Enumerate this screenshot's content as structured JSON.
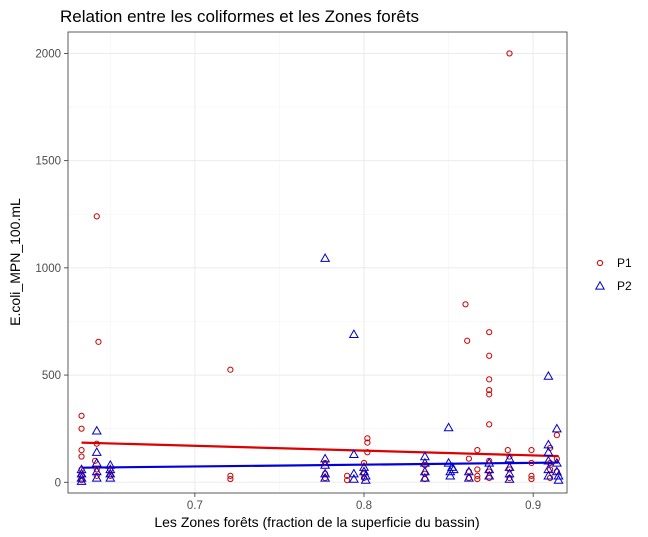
{
  "chart_data": {
    "type": "scatter",
    "title": "Relation entre les coliformes et les Zones forêts",
    "xlabel": "Les Zones forêts (fraction de la superficie du bassin)",
    "ylabel": "E.coli_MPN_100.mL",
    "xlim": [
      0.625,
      0.92
    ],
    "ylim": [
      -50,
      2100
    ],
    "x_ticks": [
      0.7,
      0.8,
      0.9
    ],
    "x_tick_labels": [
      "0.7",
      "0.8",
      "0.9"
    ],
    "y_ticks": [
      0,
      500,
      1000,
      1500,
      2000
    ],
    "y_tick_labels": [
      "0",
      "500",
      "1000",
      "1500",
      "2000"
    ],
    "grid": true,
    "legend_position": "right",
    "series": [
      {
        "name": "P1",
        "marker": "circle",
        "color": "#cc0000",
        "points": [
          [
            0.633,
            310
          ],
          [
            0.633,
            250
          ],
          [
            0.633,
            150
          ],
          [
            0.633,
            120
          ],
          [
            0.633,
            60
          ],
          [
            0.633,
            30
          ],
          [
            0.633,
            10
          ],
          [
            0.642,
            1240
          ],
          [
            0.643,
            655
          ],
          [
            0.642,
            180
          ],
          [
            0.641,
            100
          ],
          [
            0.642,
            60
          ],
          [
            0.642,
            30
          ],
          [
            0.65,
            60
          ],
          [
            0.65,
            30
          ],
          [
            0.721,
            525
          ],
          [
            0.721,
            30
          ],
          [
            0.721,
            15
          ],
          [
            0.777,
            90
          ],
          [
            0.777,
            40
          ],
          [
            0.777,
            20
          ],
          [
            0.79,
            30
          ],
          [
            0.79,
            10
          ],
          [
            0.802,
            205
          ],
          [
            0.802,
            185
          ],
          [
            0.802,
            140
          ],
          [
            0.8,
            90
          ],
          [
            0.8,
            40
          ],
          [
            0.8,
            20
          ],
          [
            0.836,
            80
          ],
          [
            0.836,
            40
          ],
          [
            0.836,
            15
          ],
          [
            0.86,
            830
          ],
          [
            0.861,
            660
          ],
          [
            0.862,
            110
          ],
          [
            0.862,
            50
          ],
          [
            0.862,
            20
          ],
          [
            0.867,
            150
          ],
          [
            0.867,
            60
          ],
          [
            0.867,
            30
          ],
          [
            0.867,
            15
          ],
          [
            0.874,
            700
          ],
          [
            0.874,
            590
          ],
          [
            0.874,
            480
          ],
          [
            0.874,
            430
          ],
          [
            0.874,
            410
          ],
          [
            0.874,
            270
          ],
          [
            0.874,
            100
          ],
          [
            0.874,
            50
          ],
          [
            0.874,
            20
          ],
          [
            0.886,
            2000
          ],
          [
            0.885,
            150
          ],
          [
            0.886,
            120
          ],
          [
            0.886,
            60
          ],
          [
            0.886,
            20
          ],
          [
            0.899,
            150
          ],
          [
            0.899,
            90
          ],
          [
            0.899,
            30
          ],
          [
            0.899,
            15
          ],
          [
            0.91,
            160
          ],
          [
            0.91,
            90
          ],
          [
            0.91,
            60
          ],
          [
            0.91,
            20
          ],
          [
            0.914,
            220
          ],
          [
            0.914,
            110
          ],
          [
            0.914,
            50
          ]
        ]
      },
      {
        "name": "P2",
        "marker": "triangle",
        "color": "#0000cc",
        "points": [
          [
            0.633,
            60
          ],
          [
            0.633,
            40
          ],
          [
            0.633,
            20
          ],
          [
            0.633,
            5
          ],
          [
            0.642,
            240
          ],
          [
            0.642,
            140
          ],
          [
            0.642,
            90
          ],
          [
            0.642,
            50
          ],
          [
            0.642,
            20
          ],
          [
            0.65,
            80
          ],
          [
            0.65,
            60
          ],
          [
            0.65,
            40
          ],
          [
            0.65,
            20
          ],
          [
            0.777,
            1045
          ],
          [
            0.777,
            110
          ],
          [
            0.777,
            80
          ],
          [
            0.777,
            40
          ],
          [
            0.777,
            20
          ],
          [
            0.794,
            690
          ],
          [
            0.794,
            130
          ],
          [
            0.794,
            40
          ],
          [
            0.794,
            15
          ],
          [
            0.8,
            70
          ],
          [
            0.8,
            50
          ],
          [
            0.801,
            30
          ],
          [
            0.801,
            10
          ],
          [
            0.836,
            120
          ],
          [
            0.836,
            90
          ],
          [
            0.836,
            50
          ],
          [
            0.836,
            20
          ],
          [
            0.85,
            255
          ],
          [
            0.85,
            90
          ],
          [
            0.851,
            50
          ],
          [
            0.851,
            30
          ],
          [
            0.852,
            70
          ],
          [
            0.853,
            60
          ],
          [
            0.862,
            50
          ],
          [
            0.862,
            20
          ],
          [
            0.874,
            90
          ],
          [
            0.874,
            60
          ],
          [
            0.874,
            30
          ],
          [
            0.886,
            110
          ],
          [
            0.886,
            70
          ],
          [
            0.886,
            40
          ],
          [
            0.886,
            15
          ],
          [
            0.909,
            495
          ],
          [
            0.909,
            175
          ],
          [
            0.909,
            140
          ],
          [
            0.909,
            100
          ],
          [
            0.909,
            60
          ],
          [
            0.909,
            30
          ],
          [
            0.914,
            250
          ],
          [
            0.914,
            90
          ],
          [
            0.914,
            50
          ],
          [
            0.915,
            30
          ],
          [
            0.915,
            10
          ]
        ]
      }
    ],
    "trend_lines": [
      {
        "series": "P1",
        "color": "#dd0000",
        "x": [
          0.633,
          0.915
        ],
        "y": [
          185,
          122
        ]
      },
      {
        "series": "P2",
        "color": "#0000dd",
        "x": [
          0.633,
          0.915
        ],
        "y": [
          68,
          92
        ]
      }
    ]
  }
}
